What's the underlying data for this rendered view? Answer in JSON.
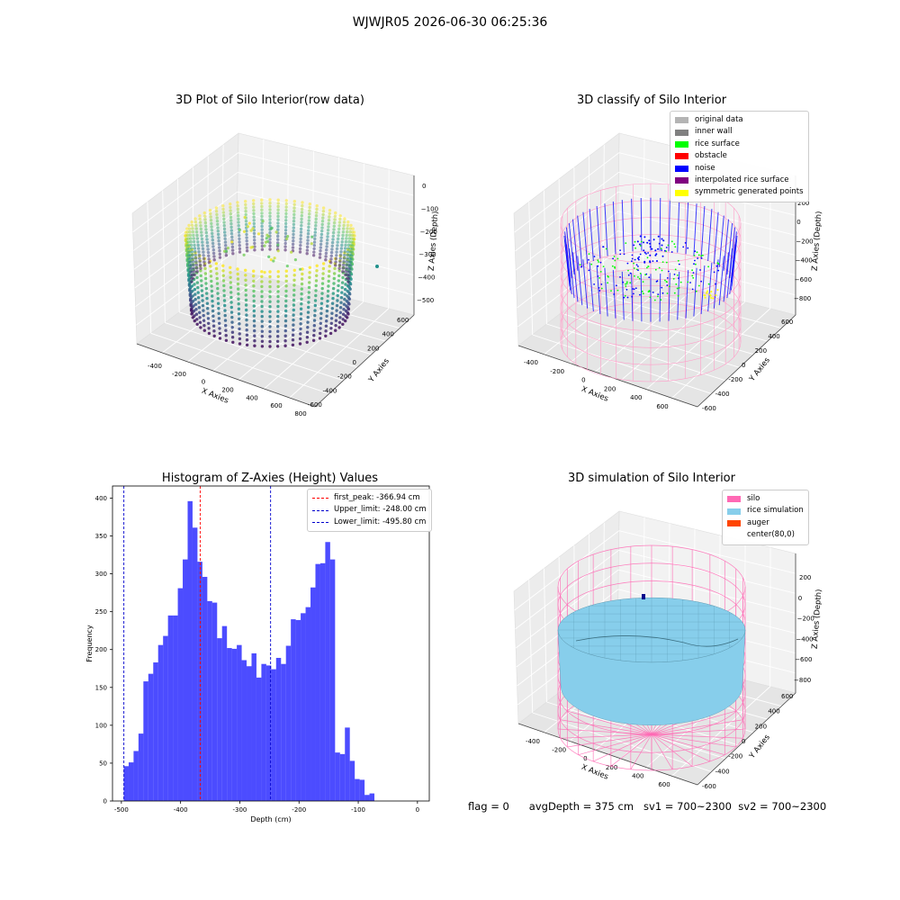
{
  "suptitle": "WJWJR05 2026-06-30 06:25:36",
  "status": {
    "flag": "flag = 0",
    "avg_depth": "avgDepth = 375 cm",
    "sv1": "sv1 = 700~2300",
    "sv2": "sv2 = 700~2300"
  },
  "chart_data": [
    {
      "type": "scatter",
      "title": "3D Plot of Silo Interior(row data)",
      "xlabel": "X Axies",
      "ylabel": "Y Axies",
      "zlabel": "Z Axies (Depth)",
      "x_ticks": [
        "-400",
        "-200",
        "0",
        "200",
        "400",
        "600",
        "800"
      ],
      "y_ticks": [
        "-600",
        "-400",
        "-200",
        "0",
        "200",
        "400",
        "600"
      ],
      "z_ticks": [
        "0",
        "−100",
        "−200",
        "−300",
        "−400",
        "−500"
      ],
      "colormap": "viridis",
      "colors": {
        "low": "#440154",
        "mid": "#21918c",
        "high": "#fde725"
      }
    },
    {
      "type": "scatter",
      "title": "3D classify of Silo Interior",
      "xlabel": "X Axies",
      "ylabel": "Y Axies",
      "zlabel": "Z Axies (Depth)",
      "x_ticks": [
        "-400",
        "-200",
        "0",
        "200",
        "400",
        "600"
      ],
      "y_ticks": [
        "-600",
        "-400",
        "-200",
        "0",
        "200",
        "400",
        "600"
      ],
      "z_ticks": [
        "200",
        "0",
        "−200",
        "−400",
        "−600",
        "−800"
      ],
      "legend": [
        {
          "label": "original data",
          "color": "#b4b4b4"
        },
        {
          "label": "inner wall",
          "color": "#808080"
        },
        {
          "label": "rice surface",
          "color": "#00ff00"
        },
        {
          "label": "obstacle",
          "color": "#ff0000"
        },
        {
          "label": "noise",
          "color": "#0000ff"
        },
        {
          "label": "interpolated rice surface",
          "color": "#800080"
        },
        {
          "label": "symmetric generated points",
          "color": "#ffff00"
        }
      ]
    },
    {
      "type": "bar",
      "title": "Histogram of Z-Axies (Height) Values",
      "xlabel": "Depth (cm)",
      "ylabel": "Frequency",
      "xlim": [
        -515,
        20
      ],
      "ylim": [
        0,
        416
      ],
      "x_ticks": [
        -500,
        -400,
        -300,
        -200,
        -100,
        0
      ],
      "y_ticks": [
        0,
        50,
        100,
        150,
        200,
        250,
        300,
        350,
        400
      ],
      "bin_width": 8.3,
      "bin_start": -496,
      "values": [
        46,
        51,
        66,
        89,
        158,
        168,
        183,
        206,
        218,
        245,
        245,
        281,
        319,
        396,
        361,
        316,
        296,
        264,
        262,
        215,
        231,
        202,
        201,
        206,
        186,
        178,
        195,
        163,
        181,
        179,
        174,
        189,
        181,
        205,
        240,
        239,
        248,
        256,
        282,
        313,
        314,
        342,
        319,
        64,
        62,
        97,
        53,
        29,
        28,
        8,
        10
      ],
      "bar_color": "#0000ff",
      "vlines": [
        {
          "label": "first_peak: -366.94 cm",
          "x": -366.94,
          "color": "#ff0000"
        },
        {
          "label": "Upper_limit: -248.00 cm",
          "x": -248.0,
          "color": "#0000cd"
        },
        {
          "label": "Lower_limit: -495.80 cm",
          "x": -495.8,
          "color": "#0000cd"
        }
      ]
    },
    {
      "type": "area",
      "title": "3D simulation of Silo Interior",
      "xlabel": "X Axies",
      "ylabel": "Y Axies",
      "zlabel": "Z Axies (Depth)",
      "x_ticks": [
        "-400",
        "-200",
        "0",
        "200",
        "400",
        "600"
      ],
      "y_ticks": [
        "-600",
        "-400",
        "-200",
        "0",
        "200",
        "400",
        "600"
      ],
      "z_ticks": [
        "200",
        "0",
        "−200",
        "−400",
        "−600",
        "−800"
      ],
      "legend": [
        {
          "label": "silo",
          "color": "#ff69b4"
        },
        {
          "label": "rice simulation",
          "color": "#87ceeb"
        },
        {
          "label": "auger",
          "color": "#ff4500"
        },
        {
          "label": "center(80,0)",
          "color": ""
        }
      ]
    }
  ]
}
